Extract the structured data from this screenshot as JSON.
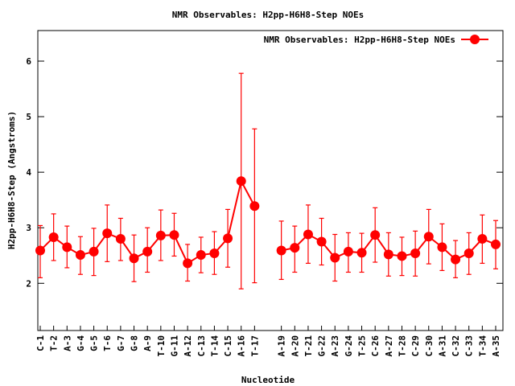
{
  "chart_data": {
    "type": "line",
    "title": "NMR Observables: H2pp-H6H8-Step NOEs",
    "xlabel": "Nucleotide",
    "ylabel": "H2pp-H6H8-Step (Angstroms)",
    "ylim": [
      1.15,
      6.55
    ],
    "xlim": [
      0.82,
      35.54
    ],
    "yticks": [
      "2",
      "3",
      "4",
      "5",
      "6"
    ],
    "ytick_values": [
      2,
      3,
      4,
      5,
      6
    ],
    "grid": false,
    "legend": {
      "label": "NMR Observables: H2pp-H6H8-Step NOEs",
      "placement": "top-right"
    },
    "series_color": "#ff0000",
    "categories": [
      "C-1",
      "T-2",
      "A-3",
      "G-4",
      "G-5",
      "T-6",
      "G-7",
      "G-8",
      "A-9",
      "T-10",
      "G-11",
      "A-12",
      "C-13",
      "T-14",
      "C-15",
      "A-16",
      "T-17",
      "A-19",
      "A-20",
      "T-21",
      "G-22",
      "A-23",
      "G-24",
      "T-25",
      "C-26",
      "A-27",
      "T-28",
      "C-29",
      "C-30",
      "A-31",
      "C-32",
      "C-33",
      "T-34",
      "A-35"
    ],
    "x": [
      1,
      2,
      3,
      4,
      5,
      6,
      7,
      8,
      9,
      10,
      11,
      12,
      13,
      14,
      15,
      16,
      17,
      19,
      20,
      21,
      22,
      23,
      24,
      25,
      26,
      27,
      28,
      29,
      30,
      31,
      32,
      33,
      34,
      35
    ],
    "series": [
      {
        "name": "NMR Observables: H2pp-H6H8-Step NOEs",
        "values": [
          2.59,
          2.83,
          2.65,
          2.51,
          2.57,
          2.9,
          2.8,
          2.45,
          2.57,
          2.86,
          2.87,
          2.36,
          2.51,
          2.54,
          2.81,
          3.84,
          3.39,
          2.59,
          2.64,
          2.88,
          2.75,
          2.46,
          2.57,
          2.55,
          2.87,
          2.52,
          2.49,
          2.54,
          2.84,
          2.65,
          2.43,
          2.54,
          2.8,
          2.7
        ],
        "err_low": [
          2.1,
          2.41,
          2.28,
          2.16,
          2.14,
          2.39,
          2.41,
          2.03,
          2.2,
          2.41,
          2.49,
          2.04,
          2.19,
          2.16,
          2.29,
          1.9,
          2.01,
          2.07,
          2.2,
          2.36,
          2.33,
          2.04,
          2.2,
          2.2,
          2.38,
          2.13,
          2.14,
          2.13,
          2.35,
          2.23,
          2.1,
          2.16,
          2.36,
          2.26
        ],
        "err_high": [
          3.04,
          3.25,
          3.03,
          2.84,
          2.99,
          3.41,
          3.17,
          2.87,
          3.0,
          3.32,
          3.26,
          2.7,
          2.83,
          2.93,
          3.33,
          5.78,
          4.78,
          3.12,
          3.03,
          3.41,
          3.17,
          2.88,
          2.91,
          2.9,
          3.36,
          2.91,
          2.83,
          2.94,
          3.33,
          3.07,
          2.77,
          2.91,
          3.23,
          3.13
        ]
      }
    ]
  }
}
